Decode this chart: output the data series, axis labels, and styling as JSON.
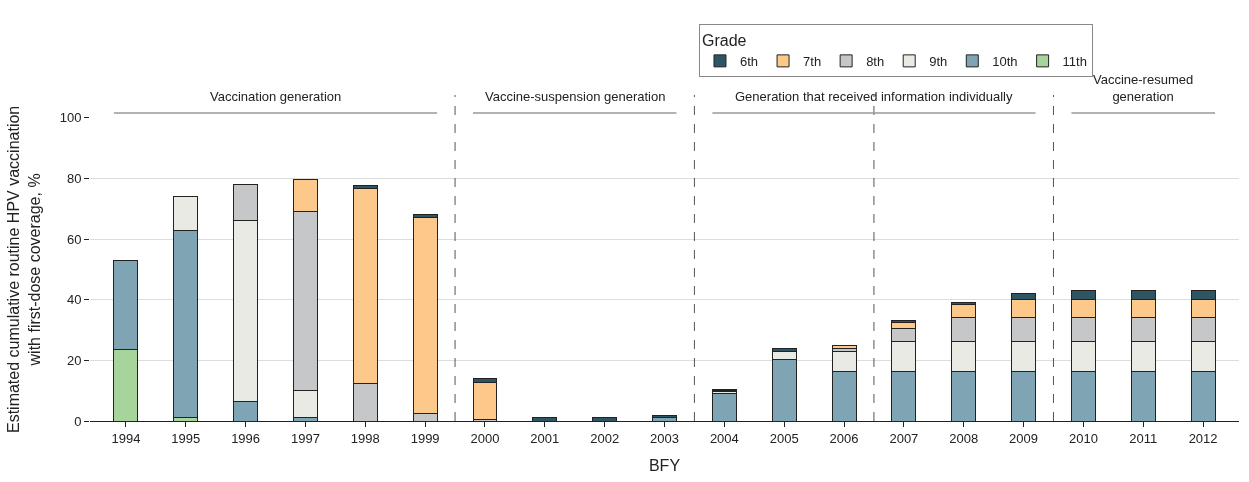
{
  "chart_data": {
    "type": "bar",
    "stacked": true,
    "xlabel": "BFY",
    "ylabel": "Estimated cumulative routine HPV vaccination\nwith first-dose coverage, %",
    "legend_title": "Grade",
    "legend": "top right",
    "grid": "y",
    "categories": [
      "1994",
      "1995",
      "1996",
      "1997",
      "1998",
      "1999",
      "2000",
      "2001",
      "2002",
      "2003",
      "2004",
      "2005",
      "2006",
      "2007",
      "2008",
      "2009",
      "2010",
      "2011",
      "2012"
    ],
    "ylim": [
      0,
      100
    ],
    "yticks": [
      0,
      20,
      40,
      60,
      80,
      100
    ],
    "series": [
      {
        "name": "11th",
        "color": "#a6d49a",
        "values": [
          23.5,
          1,
          null,
          null,
          null,
          null,
          null,
          null,
          null,
          null,
          null,
          null,
          null,
          null,
          null,
          null,
          null,
          null,
          null
        ]
      },
      {
        "name": "10th",
        "color": "#7fa4b4",
        "values": [
          29.5,
          62,
          6.5,
          1,
          null,
          null,
          null,
          null,
          null,
          1.3,
          9.2,
          20.3,
          16.2,
          16.2,
          16.2,
          16.2,
          16.2,
          16.2,
          16.2
        ]
      },
      {
        "name": "9th",
        "color": "#e9eae3",
        "values": [
          null,
          11,
          59.5,
          9,
          null,
          null,
          null,
          null,
          null,
          null,
          0.6,
          2.5,
          6.8,
          10,
          10,
          10,
          10,
          10,
          10
        ]
      },
      {
        "name": "8th",
        "color": "#c6c7c9",
        "values": [
          null,
          null,
          12,
          59,
          12.3,
          2.5,
          0.5,
          null,
          null,
          null,
          null,
          null,
          1,
          4.3,
          7.8,
          7.8,
          7.8,
          7.8,
          7.8
        ]
      },
      {
        "name": "7th",
        "color": "#fcc98a",
        "values": [
          null,
          null,
          null,
          10.5,
          64.5,
          64.5,
          12.3,
          null,
          null,
          null,
          0.2,
          null,
          1,
          2.1,
          4.5,
          6.2,
          6.2,
          6.2,
          6.2
        ]
      },
      {
        "name": "6th",
        "color": "#2e5563",
        "values": [
          null,
          null,
          null,
          null,
          1,
          1,
          1.2,
          1,
          1,
          0.5,
          0.4,
          1,
          null,
          0.4,
          0.5,
          2,
          3,
          3,
          3
        ]
      }
    ],
    "annotations": [
      "Vaccination generation",
      "Vaccine-suspension generation",
      "Generation that received information individually",
      "Vaccine-resumed\ngeneration"
    ]
  }
}
